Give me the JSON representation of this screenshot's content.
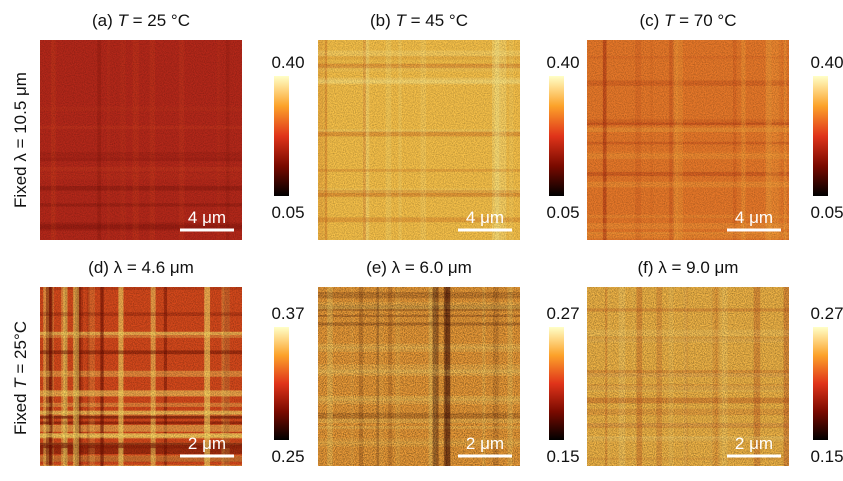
{
  "rows": [
    {
      "label": [
        {
          "text": "Fixed λ = 10.5 μm",
          "italic": false
        }
      ]
    },
    {
      "label": [
        {
          "text": "Fixed ",
          "italic": false
        },
        {
          "text": "T",
          "italic": true
        },
        {
          "text": " = 25°C",
          "italic": false
        }
      ]
    }
  ],
  "panels": [
    {
      "title": [
        {
          "text": "(a) ",
          "italic": false
        },
        {
          "text": "T",
          "italic": true
        },
        {
          "text": " = 25 °C",
          "italic": false
        }
      ],
      "colorbar": {
        "max": "0.40",
        "min": "0.05"
      },
      "scalebar": "4 μm"
    },
    {
      "title": [
        {
          "text": "(b) ",
          "italic": false
        },
        {
          "text": "T",
          "italic": true
        },
        {
          "text": " = 45 °C",
          "italic": false
        }
      ],
      "colorbar": {
        "max": "0.40",
        "min": "0.05"
      },
      "scalebar": "4 μm"
    },
    {
      "title": [
        {
          "text": "(c) ",
          "italic": false
        },
        {
          "text": "T",
          "italic": true
        },
        {
          "text": " = 70 °C",
          "italic": false
        }
      ],
      "colorbar": {
        "max": "0.40",
        "min": "0.05"
      },
      "scalebar": "4 μm"
    },
    {
      "title": [
        {
          "text": "(d) λ = 4.6 μm",
          "italic": false
        }
      ],
      "colorbar": {
        "max": "0.37",
        "min": "0.25"
      },
      "scalebar": "2 μm"
    },
    {
      "title": [
        {
          "text": "(e) λ = 6.0 μm",
          "italic": false
        }
      ],
      "colorbar": {
        "max": "0.27",
        "min": "0.15"
      },
      "scalebar": "2 μm"
    },
    {
      "title": [
        {
          "text": "(f) λ = 9.0 μm",
          "italic": false
        }
      ],
      "colorbar": {
        "max": "0.27",
        "min": "0.15"
      },
      "scalebar": "2 μm"
    }
  ]
}
